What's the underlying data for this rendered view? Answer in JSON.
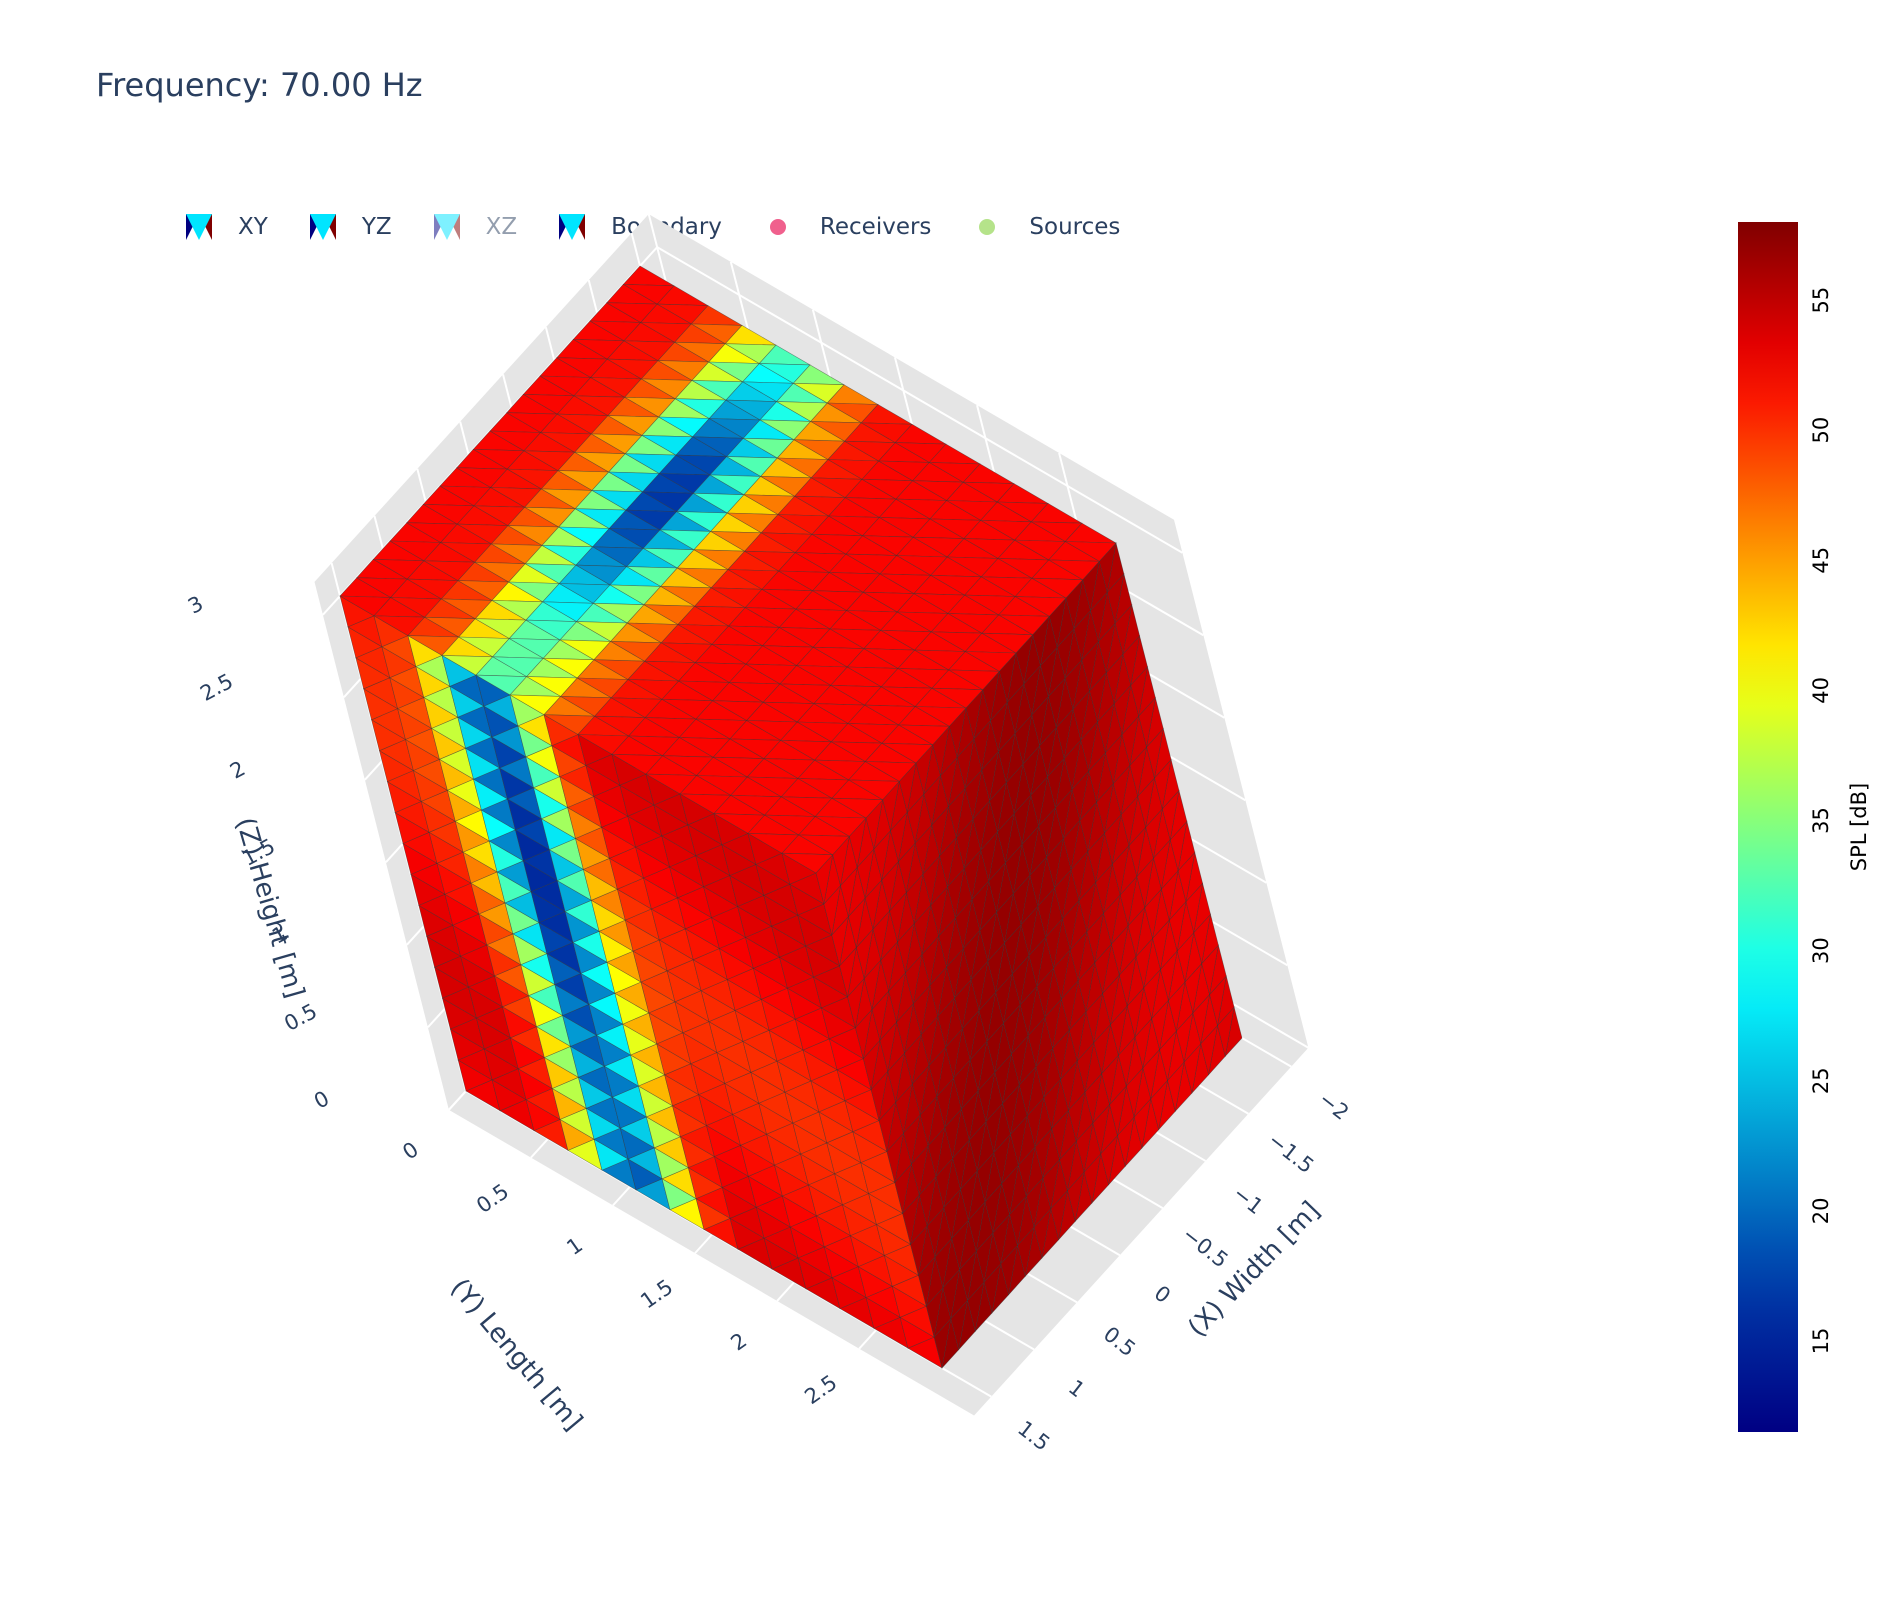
{
  "chart": {
    "title": "Frequency: 70.00 Hz"
  },
  "legend": [
    {
      "label": "XY",
      "kind": "mesh",
      "visible": true
    },
    {
      "label": "YZ",
      "kind": "mesh",
      "visible": true
    },
    {
      "label": "XZ",
      "kind": "mesh",
      "visible": false
    },
    {
      "label": "Boundary",
      "kind": "mesh",
      "visible": true
    },
    {
      "label": "Receivers",
      "kind": "marker",
      "color": "#f0608d",
      "visible": true
    },
    {
      "label": "Sources",
      "kind": "marker",
      "color": "#b5e38a",
      "visible": true
    }
  ],
  "colors": {
    "paper_bg": "#ffffff",
    "scene_bg": "#e5e5e5",
    "grid": "#ffffff",
    "text": "#2a3f5f",
    "mesh_edges": "#333333"
  },
  "chart_data": {
    "type": "mesh3d",
    "title": "Frequency: 70.00 Hz",
    "colorscale": "jet",
    "colorbar": {
      "title": "SPL [dB]",
      "range": [
        11.5,
        58
      ],
      "ticks": [
        "15",
        "20",
        "25",
        "30",
        "35",
        "40",
        "45",
        "50",
        "55"
      ],
      "tick_values": [
        15,
        20,
        25,
        30,
        35,
        40,
        45,
        50,
        55
      ]
    },
    "axes": {
      "x": {
        "label": "(X) Width [m]",
        "ticks": [
          "−2",
          "−1.5",
          "−1",
          "−0.5",
          "0",
          "0.5",
          "1",
          "1.5"
        ],
        "tick_values": [
          -2,
          -1.5,
          -1,
          -0.5,
          0,
          0.5,
          1,
          1.5
        ],
        "range": [
          -2,
          1.5
        ]
      },
      "y": {
        "label": "(Y) Length [m]",
        "ticks": [
          "0",
          "0.5",
          "1",
          "1.5",
          "2",
          "2.5"
        ],
        "tick_values": [
          0,
          0.5,
          1,
          1.5,
          2,
          2.5
        ],
        "range": [
          0,
          2.9
        ]
      },
      "z": {
        "label": "(Z) Height [m]",
        "ticks": [
          "0",
          "0.5",
          "1",
          "1.5",
          "2",
          "2.5",
          "3"
        ],
        "tick_values": [
          0,
          0.5,
          1,
          1.5,
          2,
          2.5,
          3
        ],
        "range": [
          0,
          3
        ]
      }
    },
    "spl_range_db": [
      11.5,
      58
    ],
    "nodal_line": {
      "description_level_db": 12,
      "background_level_db": 52
    }
  }
}
